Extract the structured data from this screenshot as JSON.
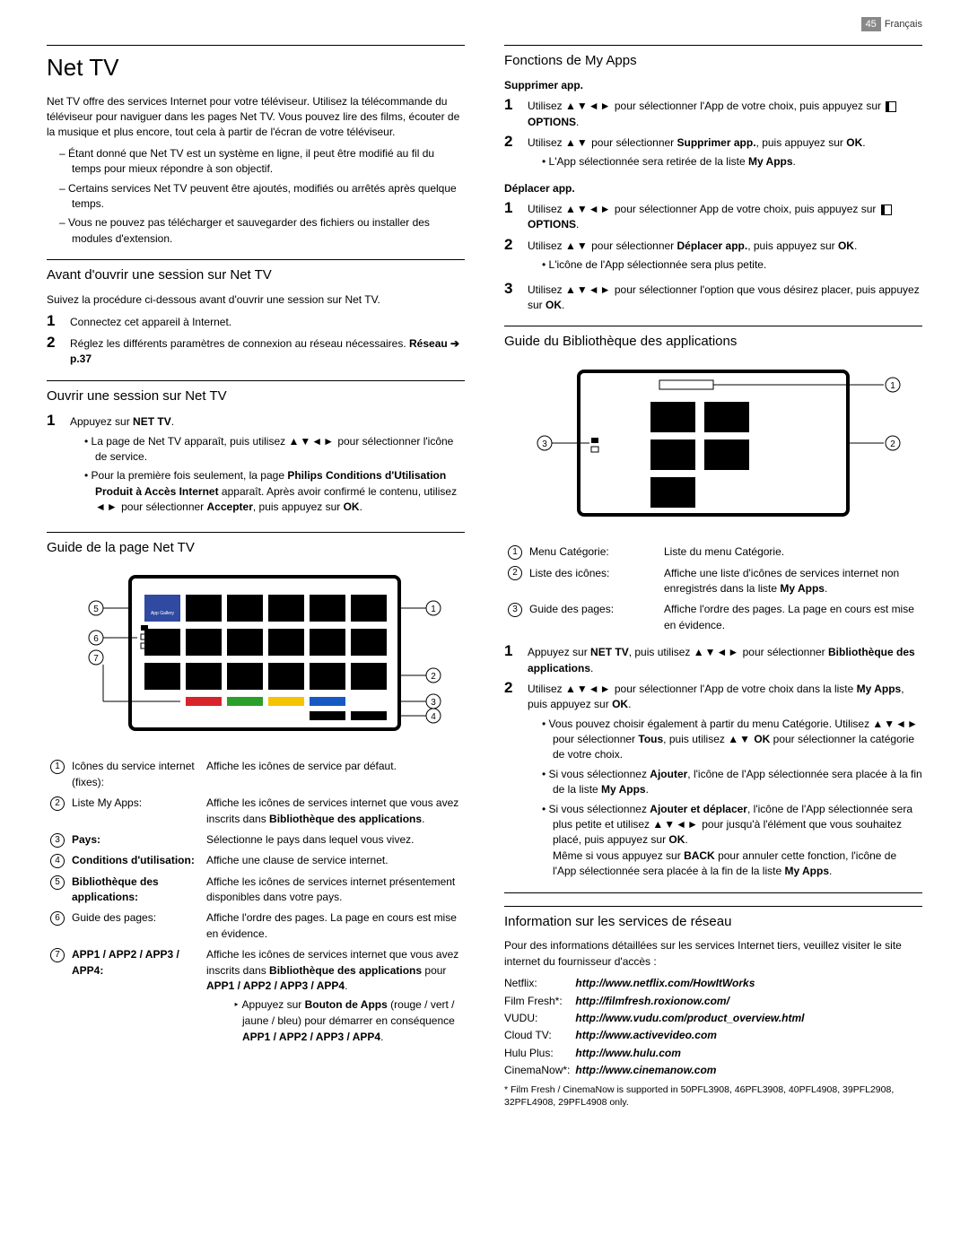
{
  "page": {
    "number": "45",
    "language": "Français"
  },
  "h1": "Net TV",
  "intro": "Net TV offre des services Internet pour votre téléviseur. Utilisez la télécommande du téléviseur pour naviguer dans les pages Net TV. Vous pouvez lire des films, écouter de la musique et plus encore, tout cela à partir de l'écran de votre téléviseur.",
  "intro_bullets": [
    "Étant donné que Net TV est un système en ligne, il peut être modifié au fil du temps pour mieux répondre à son objectif.",
    "Certains services Net TV peuvent être ajoutés, modifiés ou arrêtés après quelque temps.",
    "Vous ne pouvez pas télécharger et sauvegarder des fichiers ou installer des modules d'extension."
  ],
  "sec_before": {
    "title": "Avant d'ouvrir une session sur Net TV",
    "lead": "Suivez la procédure ci-dessous avant d'ouvrir une session sur Net TV.",
    "s1": "Connectez cet appareil à Internet.",
    "s2_a": "Réglez les différents paramètres de connexion au réseau nécessaires. ",
    "s2_b": "Réseau ➔ p.37"
  },
  "sec_open": {
    "title": "Ouvrir une session sur Net TV",
    "s1_a": "Appuyez sur ",
    "s1_b": "NET TV",
    "b1_a": "La page de Net TV apparaît, puis utilisez ",
    "b1_b": " pour sélectionner l'icône de service.",
    "b2_a": "Pour la première fois seulement, la page ",
    "b2_b": "Philips Conditions d'Utilisation Produit à Accès Internet",
    "b2_c": " apparaît. Après avoir confirmé le contenu, utilisez ",
    "b2_d": " pour sélectionner ",
    "b2_e": "Accepter",
    "b2_f": ", puis appuyez sur ",
    "b2_g": "OK"
  },
  "sec_guide_net": {
    "title": "Guide de la page Net TV",
    "app_gallery": "App Gallery",
    "legend": [
      {
        "n": "1",
        "term": "Icônes du service internet (fixes):",
        "desc": "Affiche les icônes de service par défaut."
      },
      {
        "n": "2",
        "term": "Liste My Apps:",
        "desc": "Affiche les icônes de services internet que vous avez inscrits dans Bibliothèque des applications."
      },
      {
        "n": "3",
        "term": "Pays:",
        "desc": "Sélectionne le pays dans lequel vous vivez."
      },
      {
        "n": "4",
        "term": "Conditions d'utilisation:",
        "desc": "Affiche une clause de service internet."
      },
      {
        "n": "5",
        "term": "Bibliothèque des applications:",
        "desc": "Affiche les icônes de services internet présentement disponibles dans votre pays."
      },
      {
        "n": "6",
        "term": "Guide des pages:",
        "desc": "Affiche l'ordre des pages. La page en cours est mise en évidence."
      }
    ],
    "legend7_term": "APP1 / APP2 / APP3 / APP4:",
    "legend7_desc_a": "Affiche les icônes de services internet que vous avez inscrits dans ",
    "legend7_desc_b": "Bibliothèque des applications",
    "legend7_desc_c": " pour ",
    "legend7_desc_d": "APP1 / APP2 / APP3 / APP4",
    "legend7_sub_a": "Appuyez sur ",
    "legend7_sub_b": "Bouton de Apps",
    "legend7_sub_c": " (rouge / vert / jaune / bleu) pour démarrer en conséquence ",
    "legend7_sub_d": "APP1 / APP2 / APP3 / APP4"
  },
  "sec_fn": {
    "title": "Fonctions de My Apps",
    "del": {
      "h": "Supprimer app.",
      "s1_a": "Utilisez ",
      "s1_b": " pour sélectionner l'App de votre choix, puis appuyez sur ",
      "s1_c": "OPTIONS",
      "s2_a": "Utilisez ",
      "s2_b": " pour sélectionner ",
      "s2_c": "Supprimer app.",
      "s2_d": ", puis appuyez sur ",
      "s2_e": "OK",
      "b1_a": "L'App sélectionnée sera retirée de la liste ",
      "b1_b": "My Apps"
    },
    "mov": {
      "h": "Déplacer app.",
      "s1_a": "Utilisez ",
      "s1_b": " pour sélectionner App de votre choix, puis appuyez sur ",
      "s1_c": "OPTIONS",
      "s2_a": "Utilisez ",
      "s2_b": " pour sélectionner ",
      "s2_c": "Déplacer app.",
      "s2_d": ", puis appuyez sur ",
      "s2_e": "OK",
      "b1": "L'icône de l'App sélectionnée sera plus petite.",
      "s3_a": "Utilisez ",
      "s3_b": " pour sélectionner l'option que vous désirez placer, puis appuyez sur ",
      "s3_c": "OK"
    }
  },
  "sec_lib": {
    "title": "Guide du Bibliothèque des applications",
    "legend": [
      {
        "n": "1",
        "term": "Menu Catégorie:",
        "desc": "Liste du menu Catégorie."
      },
      {
        "n": "2",
        "term": "Liste des icônes:",
        "desc": "Affiche une liste d'icônes de services internet non enregistrés dans la liste My Apps."
      },
      {
        "n": "3",
        "term": "Guide des pages:",
        "desc": "Affiche l'ordre des pages. La page en cours est mise en évidence."
      }
    ],
    "s1_a": "Appuyez sur ",
    "s1_b": "NET TV",
    "s1_c": ", puis utilisez ",
    "s1_d": " pour sélectionner ",
    "s1_e": "Bibliothèque des applications",
    "s2_a": "Utilisez ",
    "s2_b": " pour sélectionner l'App de votre choix dans la liste ",
    "s2_c": "My Apps",
    "s2_d": ", puis appuyez sur ",
    "s2_e": "OK",
    "b1_a": "Vous pouvez choisir également à partir du menu Catégorie. Utilisez ",
    "b1_b": " pour sélectionner ",
    "b1_c": "Tous",
    "b1_d": ", puis utilisez ",
    "b1_e": "OK",
    "b1_f": " pour sélectionner la catégorie de votre choix.",
    "b2_a": "Si vous sélectionnez ",
    "b2_b": "Ajouter",
    "b2_c": ", l'icône de l'App sélectionnée sera placée à la fin de la liste ",
    "b2_d": "My Apps",
    "b3_a": "Si vous sélectionnez ",
    "b3_b": "Ajouter et déplacer",
    "b3_c": ", l'icône de l'App sélectionnée sera plus petite et utilisez ",
    "b3_d": " pour jusqu'à l'élément que vous souhaitez placé, puis appuyez sur ",
    "b3_e": "OK",
    "b3_f": "Même si vous appuyez sur ",
    "b3_g": "BACK",
    "b3_h": " pour annuler cette fonction, l'icône de l'App sélectionnée sera placée à la fin de la liste ",
    "b3_i": "My Apps"
  },
  "sec_net": {
    "title": "Information sur les services de réseau",
    "lead": "Pour des informations détaillées sur les services Internet tiers, veuillez visiter le site internet du fournisseur d'accès :",
    "rows": [
      {
        "name": "Netflix:",
        "url": "http://www.netflix.com/HowItWorks"
      },
      {
        "name": "Film Fresh*:",
        "url": "http://filmfresh.roxionow.com/"
      },
      {
        "name": "VUDU:",
        "url": "http://www.vudu.com/product_overview.html"
      },
      {
        "name": "Cloud TV:",
        "url": "http://www.activevideo.com"
      },
      {
        "name": "Hulu Plus:",
        "url": "http://www.hulu.com"
      },
      {
        "name": "CinemaNow*:",
        "url": "http://www.cinemanow.com"
      }
    ],
    "footnote": "*  Film Fresh / CinemaNow is supported in 50PFL3908, 46PFL3908, 40PFL4908, 39PFL2908, 32PFL4908, 29PFL4908 only."
  },
  "colors": {
    "red": "#d8232a",
    "green": "#2aa02a",
    "yellow": "#f4c400",
    "blue": "#1759c2",
    "icon_blue": "#2f4aa0"
  }
}
